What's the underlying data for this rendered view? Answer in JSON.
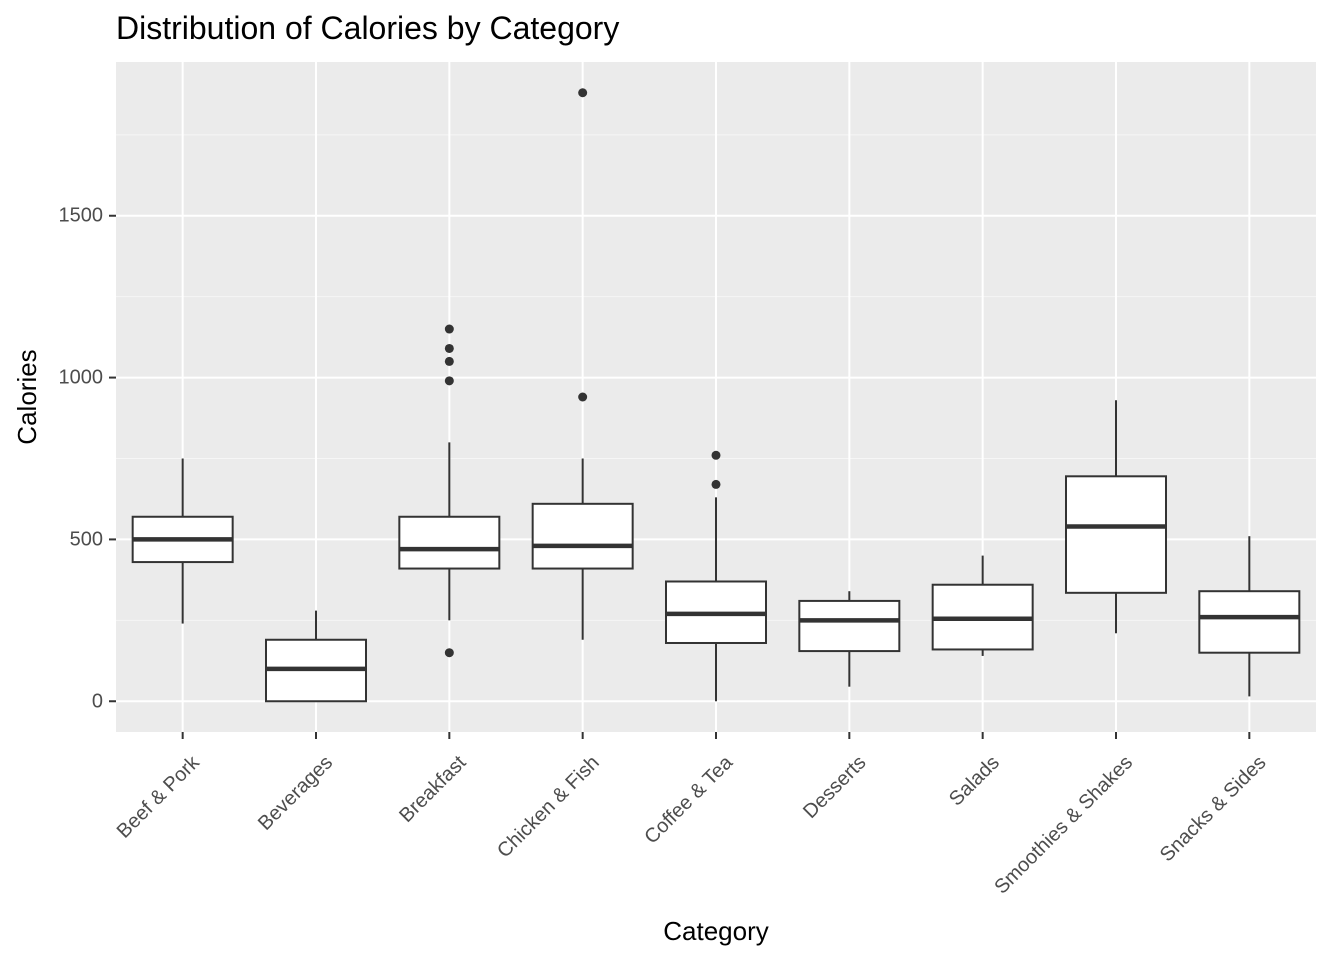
{
  "chart_data": {
    "type": "boxplot",
    "title": "Distribution of Calories by Category",
    "xlabel": "Category",
    "ylabel": "Calories",
    "ylim": [
      -95,
      1975
    ],
    "y_ticks": [
      0,
      500,
      1000,
      1500
    ],
    "grid": true,
    "legend": "none",
    "colors": {
      "panel_background": "#EBEBEB",
      "grid_major": "#FFFFFF",
      "grid_minor": "#F5F5F5",
      "box_fill": "#FFFFFF",
      "box_outline": "#333333",
      "outlier": "#333333",
      "tick_label": "#4D4D4D",
      "axis_title": "#000000"
    },
    "categories": [
      "Beef & Pork",
      "Beverages",
      "Breakfast",
      "Chicken & Fish",
      "Coffee & Tea",
      "Desserts",
      "Salads",
      "Smoothies & Shakes",
      "Snacks & Sides"
    ],
    "boxes": [
      {
        "category": "Beef & Pork",
        "min": 240,
        "q1": 430,
        "median": 500,
        "q3": 570,
        "max": 750,
        "outliers": []
      },
      {
        "category": "Beverages",
        "min": 0,
        "q1": 0,
        "median": 100,
        "q3": 190,
        "max": 280,
        "outliers": []
      },
      {
        "category": "Breakfast",
        "min": 250,
        "q1": 410,
        "median": 470,
        "q3": 570,
        "max": 800,
        "outliers": [
          150,
          990,
          1050,
          1090,
          1150
        ]
      },
      {
        "category": "Chicken & Fish",
        "min": 190,
        "q1": 410,
        "median": 480,
        "q3": 610,
        "max": 750,
        "outliers": [
          940,
          1880
        ]
      },
      {
        "category": "Coffee & Tea",
        "min": 0,
        "q1": 180,
        "median": 270,
        "q3": 370,
        "max": 630,
        "outliers": [
          670,
          760
        ]
      },
      {
        "category": "Desserts",
        "min": 45,
        "q1": 155,
        "median": 250,
        "q3": 310,
        "max": 340,
        "outliers": []
      },
      {
        "category": "Salads",
        "min": 140,
        "q1": 160,
        "median": 255,
        "q3": 360,
        "max": 450,
        "outliers": []
      },
      {
        "category": "Smoothies & Shakes",
        "min": 210,
        "q1": 335,
        "median": 540,
        "q3": 695,
        "max": 930,
        "outliers": []
      },
      {
        "category": "Snacks & Sides",
        "min": 15,
        "q1": 150,
        "median": 260,
        "q3": 340,
        "max": 510,
        "outliers": []
      }
    ]
  }
}
